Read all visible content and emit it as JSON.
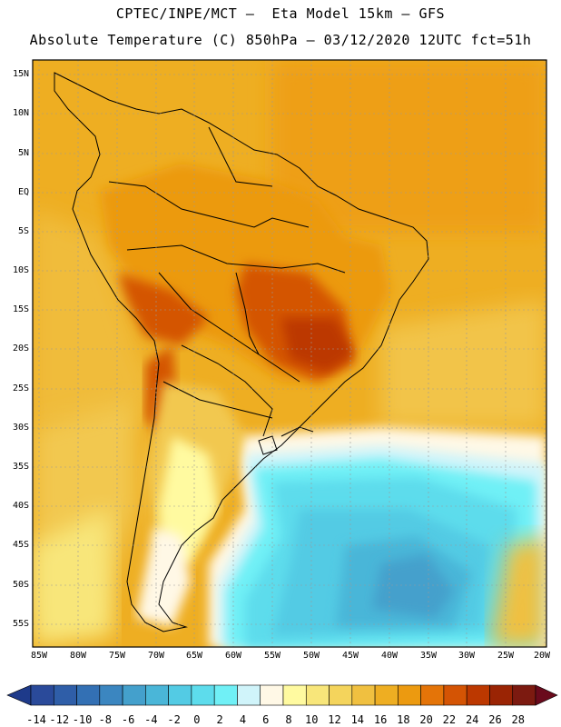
{
  "title": {
    "line1": "CPTEC/INPE/MCT –  Eta Model 15km – GFS",
    "line2": "Absolute Temperature (C) 850hPa – 03/12/2020 12UTC fct=51h"
  },
  "axes": {
    "lat_labels": [
      "15N",
      "10N",
      "5N",
      "EQ",
      "5S",
      "10S",
      "15S",
      "20S",
      "25S",
      "30S",
      "35S",
      "40S",
      "45S",
      "50S",
      "55S"
    ],
    "lon_labels": [
      "85W",
      "80W",
      "75W",
      "70W",
      "65W",
      "60W",
      "55W",
      "50W",
      "45W",
      "40W",
      "35W",
      "30W",
      "25W",
      "20W"
    ]
  },
  "colorbar": {
    "labels": [
      "-14",
      "-12",
      "-10",
      "-8",
      "-6",
      "-4",
      "-2",
      "0",
      "2",
      "4",
      "6",
      "8",
      "10",
      "12",
      "14",
      "16",
      "18",
      "20",
      "22",
      "24",
      "26",
      "28"
    ],
    "colors": [
      "#2a4a9a",
      "#2f5ea8",
      "#3370b4",
      "#3b86c0",
      "#44a0cc",
      "#4ab6d8",
      "#53cbe4",
      "#5ddcec",
      "#70f0f6",
      "#d0f4fa",
      "#fff8e6",
      "#fffaa0",
      "#f8e67a",
      "#f4d45c",
      "#f0c040",
      "#eeae22",
      "#ec9a10",
      "#e47408",
      "#d45404",
      "#bc3800",
      "#9a2404",
      "#7c1a10"
    ],
    "low_arrow_color": "#1e3a8a",
    "high_arrow_color": "#6a0a1c"
  }
}
